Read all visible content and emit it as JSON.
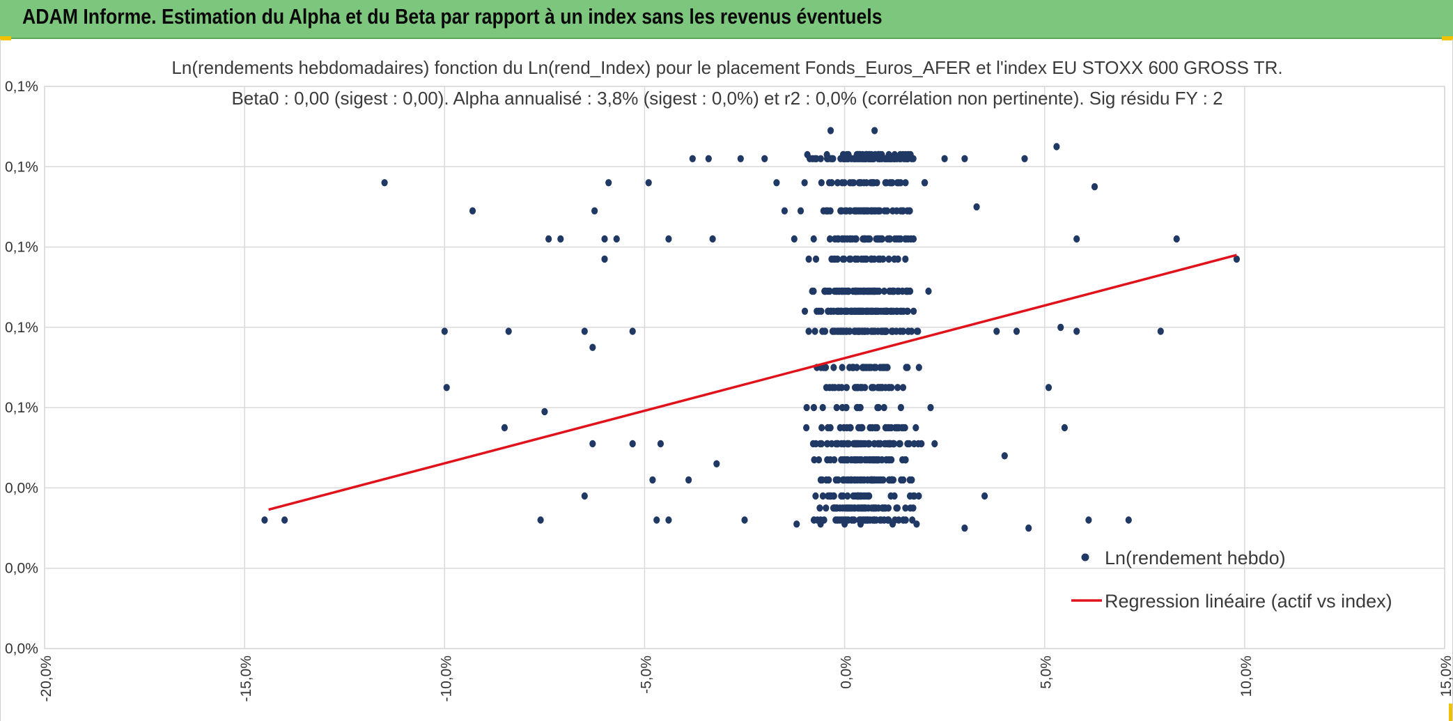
{
  "banner": {
    "title": "ADAM Informe. Estimation du Alpha et du Beta par rapport à un index sans les revenus éventuels",
    "color": "#7dc67d",
    "accent_color": "#f2c200"
  },
  "chart_data": {
    "type": "scatter",
    "title": "Ln(rendements hebdomadaires) fonction du Ln(rend_Index) pour le placement Fonds_Euros_AFER et l'index EU STOXX 600 GROSS TR.",
    "subtitle": "Beta0 : 0,00 (sigest : 0,00). Alpha annualisé : 3,8% (sigest : 0,0%) et r2 : 0,0% (corrélation non pertinente). Sig résidu FY : 2",
    "xlabel": "",
    "ylabel": "",
    "xlim": [
      -0.2,
      0.15
    ],
    "ylim": [
      0.0,
      7.0
    ],
    "x_ticks": [
      -0.2,
      -0.15,
      -0.1,
      -0.05,
      0.0,
      0.05,
      0.1,
      0.15
    ],
    "x_tick_labels": [
      "-20,0%",
      "-15,0%",
      "-10,0%",
      "-5,0%",
      "0,0%",
      "5,0%",
      "10,0%",
      "15,0%"
    ],
    "y_ticks": [
      0,
      1,
      2,
      3,
      4,
      5,
      6,
      7
    ],
    "y_tick_labels": [
      "0,0%",
      "0,0%",
      "0,0%",
      "0,1%",
      "0,1%",
      "0,1%",
      "0,1%",
      "0,1%"
    ],
    "grid": true,
    "legend_position": "bottom-right",
    "series": [
      {
        "name": "Ln(rendement hebdo)",
        "kind": "scatter",
        "color": "#203864",
        "levels": [
          1.6,
          1.75,
          1.9,
          2.1,
          2.35,
          2.55,
          2.75,
          3.0,
          3.25,
          3.5,
          3.95,
          4.2,
          4.45,
          4.85,
          5.1,
          5.45,
          5.8,
          6.1,
          6.15
        ],
        "points": [
          [
            -0.145,
            1.6
          ],
          [
            -0.14,
            1.6
          ],
          [
            -0.115,
            5.8
          ],
          [
            -0.1,
            3.95
          ],
          [
            -0.0995,
            3.25
          ],
          [
            -0.093,
            5.45
          ],
          [
            -0.085,
            2.75
          ],
          [
            -0.084,
            3.95
          ],
          [
            -0.076,
            1.6
          ],
          [
            -0.075,
            2.95
          ],
          [
            -0.074,
            5.1
          ],
          [
            -0.071,
            5.1
          ],
          [
            -0.065,
            1.9
          ],
          [
            -0.065,
            3.95
          ],
          [
            -0.063,
            2.55
          ],
          [
            -0.063,
            3.75
          ],
          [
            -0.0625,
            5.45
          ],
          [
            -0.06,
            4.85
          ],
          [
            -0.06,
            5.1
          ],
          [
            -0.059,
            5.8
          ],
          [
            -0.057,
            5.1
          ],
          [
            -0.053,
            2.55
          ],
          [
            -0.053,
            3.95
          ],
          [
            -0.049,
            5.8
          ],
          [
            -0.048,
            2.1
          ],
          [
            -0.047,
            1.6
          ],
          [
            -0.046,
            2.55
          ],
          [
            -0.044,
            1.6
          ],
          [
            -0.044,
            5.1
          ],
          [
            -0.039,
            2.1
          ],
          [
            -0.038,
            6.1
          ],
          [
            -0.034,
            6.1
          ],
          [
            -0.033,
            5.1
          ],
          [
            -0.032,
            2.3
          ],
          [
            -0.026,
            6.1
          ],
          [
            -0.025,
            1.6
          ],
          [
            -0.02,
            6.1
          ],
          [
            -0.017,
            5.8
          ],
          [
            -0.015,
            5.45
          ],
          [
            -0.012,
            1.55
          ],
          [
            -0.01,
            5.8
          ],
          [
            -0.008,
            6.1
          ],
          [
            -0.006,
            1.55
          ],
          [
            -0.0035,
            6.45
          ],
          [
            0.0,
            1.55
          ],
          [
            0.004,
            1.55
          ],
          [
            0.0055,
            5.45
          ],
          [
            0.0075,
            6.45
          ],
          [
            0.012,
            1.55
          ],
          [
            0.014,
            5.8
          ],
          [
            0.018,
            1.55
          ],
          [
            0.02,
            5.8
          ],
          [
            0.025,
            6.1
          ],
          [
            0.03,
            1.5
          ],
          [
            0.03,
            6.1
          ],
          [
            0.033,
            5.5
          ],
          [
            0.035,
            1.9
          ],
          [
            0.038,
            3.95
          ],
          [
            0.04,
            2.4
          ],
          [
            0.043,
            3.95
          ],
          [
            0.045,
            6.1
          ],
          [
            0.046,
            1.5
          ],
          [
            0.051,
            3.25
          ],
          [
            0.053,
            6.25
          ],
          [
            0.054,
            4.0
          ],
          [
            0.055,
            2.75
          ],
          [
            0.058,
            5.1
          ],
          [
            0.058,
            3.95
          ],
          [
            0.061,
            1.6
          ],
          [
            0.0625,
            5.75
          ],
          [
            0.071,
            1.6
          ],
          [
            0.079,
            3.95
          ],
          [
            0.083,
            5.1
          ],
          [
            0.098,
            4.85
          ]
        ]
      },
      {
        "name": "Regression linéaire (actif vs index)",
        "kind": "line",
        "color": "#e0121b",
        "x": [
          -0.144,
          0.098
        ],
        "y": [
          1.73,
          4.9
        ]
      }
    ]
  }
}
